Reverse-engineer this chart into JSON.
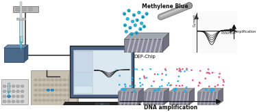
{
  "bg_color": "#ffffff",
  "fig_width": 3.75,
  "fig_height": 1.64,
  "dpi": 100,
  "methylene_blue_label": "Methylene Blue",
  "dep_chip_label": "DEP-Chip",
  "dna_amp_label": "DNA amplification",
  "amplification_label": "Amplification",
  "current_label": "Current",
  "potential_label": "Potential",
  "curve_color": "#2b2b2b",
  "cyan_color": "#29b6d4",
  "pink_color": "#d44466",
  "blue_dot_color": "#29b6f6",
  "red_arrow_color": "#e53935",
  "laptop_screen_bg": "#dce8f0",
  "laptop_screen_panel": "#c5d8e8",
  "laptop_body": "#2a2a2a",
  "laptop_border": "#4a6080",
  "usb_box_color": "#b8b8b8",
  "pipette_body": "#c8dde0",
  "pipette_tip": "#5bbcd4",
  "blue_box_color": "#4a6888",
  "chip_top_color": "#aaaaaa",
  "chip_side_color": "#787878",
  "chip_cylinder": "#888888"
}
